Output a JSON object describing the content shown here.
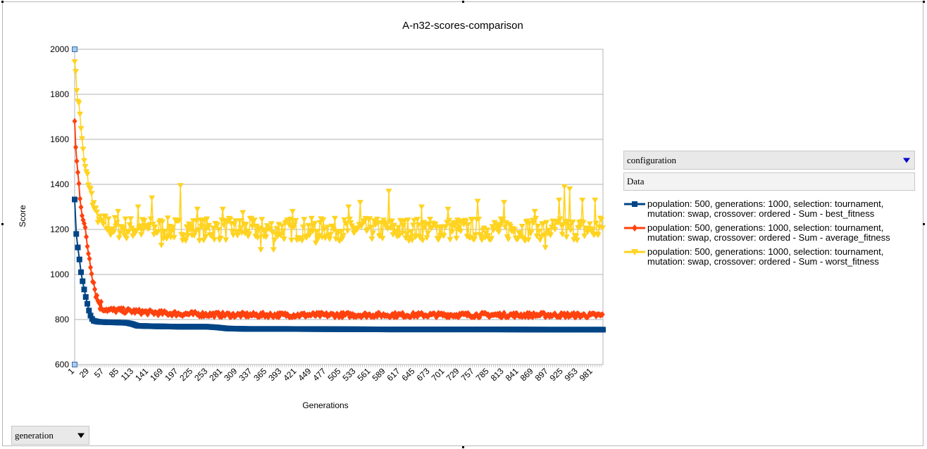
{
  "chart_data": {
    "type": "line",
    "title": "A-n32-scores-comparison",
    "xlabel": "Generations",
    "ylabel": "Score",
    "xlim": [
      1,
      1000
    ],
    "ylim": [
      600,
      2000
    ],
    "yticks": [
      600,
      800,
      1000,
      1200,
      1400,
      1600,
      1800,
      2000
    ],
    "xtick_labels": [
      1,
      29,
      57,
      85,
      113,
      141,
      169,
      197,
      225,
      253,
      281,
      309,
      337,
      365,
      393,
      421,
      449,
      477,
      505,
      533,
      561,
      589,
      617,
      645,
      673,
      701,
      729,
      757,
      785,
      813,
      841,
      869,
      897,
      925,
      953,
      981
    ],
    "grid": "horizontal",
    "legend_position": "right",
    "series": [
      {
        "name": "population: 500, generations: 1000, selection: tournament, mutation: swap, crossover: ordered - Sum - best_fitness",
        "color": "#004586",
        "marker": "square",
        "points": [
          [
            1,
            1333
          ],
          [
            3,
            1200
          ],
          [
            5,
            1160
          ],
          [
            8,
            1100
          ],
          [
            11,
            1050
          ],
          [
            14,
            990
          ],
          [
            17,
            960
          ],
          [
            20,
            920
          ],
          [
            24,
            880
          ],
          [
            28,
            840
          ],
          [
            32,
            810
          ],
          [
            36,
            795
          ],
          [
            45,
            790
          ],
          [
            60,
            788
          ],
          [
            80,
            787
          ],
          [
            100,
            785
          ],
          [
            110,
            780
          ],
          [
            120,
            772
          ],
          [
            150,
            770
          ],
          [
            200,
            768
          ],
          [
            250,
            768
          ],
          [
            270,
            765
          ],
          [
            290,
            760
          ],
          [
            330,
            758
          ],
          [
            400,
            758
          ],
          [
            500,
            757
          ],
          [
            600,
            756
          ],
          [
            700,
            756
          ],
          [
            800,
            756
          ],
          [
            900,
            755
          ],
          [
            1000,
            755
          ]
        ]
      },
      {
        "name": "population: 500, generations: 1000, selection: tournament, mutation: swap, crossover: ordered - Sum - average_fitness",
        "color": "#ff420e",
        "marker": "diamond",
        "points": [
          [
            1,
            1690
          ],
          [
            3,
            1560
          ],
          [
            6,
            1470
          ],
          [
            9,
            1400
          ],
          [
            12,
            1330
          ],
          [
            15,
            1280
          ],
          [
            19,
            1220
          ],
          [
            23,
            1160
          ],
          [
            27,
            1100
          ],
          [
            31,
            1050
          ],
          [
            35,
            990
          ],
          [
            39,
            940
          ],
          [
            43,
            900
          ],
          [
            48,
            870
          ],
          [
            55,
            850
          ],
          [
            65,
            842
          ],
          [
            90,
            840
          ],
          [
            120,
            835
          ],
          [
            150,
            830
          ],
          [
            200,
            825
          ],
          [
            300,
            820
          ],
          [
            400,
            820
          ],
          [
            500,
            820
          ],
          [
            600,
            820
          ],
          [
            700,
            820
          ],
          [
            800,
            820
          ],
          [
            900,
            820
          ],
          [
            1000,
            818
          ]
        ],
        "noise_band": [
          810,
          830
        ]
      },
      {
        "name": "population: 500, generations: 1000, selection: tournament, mutation: swap, crossover: ordered - Sum - worst_fitness",
        "color": "#ffd320",
        "marker": "triangle-down",
        "points": [
          [
            1,
            1970
          ],
          [
            3,
            1880
          ],
          [
            6,
            1800
          ],
          [
            9,
            1750
          ],
          [
            12,
            1690
          ],
          [
            15,
            1590
          ],
          [
            18,
            1520
          ],
          [
            21,
            1470
          ],
          [
            25,
            1430
          ],
          [
            30,
            1380
          ],
          [
            35,
            1330
          ],
          [
            40,
            1280
          ],
          [
            45,
            1250
          ],
          [
            55,
            1220
          ],
          [
            70,
            1210
          ],
          [
            100,
            1205
          ],
          [
            200,
            1200
          ],
          [
            400,
            1200
          ],
          [
            600,
            1200
          ],
          [
            800,
            1200
          ],
          [
            1000,
            1200
          ]
        ],
        "noise_band": [
          1160,
          1260
        ],
        "spikes": [
          [
            83,
            1280
          ],
          [
            121,
            1300
          ],
          [
            147,
            1340
          ],
          [
            164,
            1130
          ],
          [
            200,
            1395
          ],
          [
            232,
            1290
          ],
          [
            281,
            1290
          ],
          [
            318,
            1275
          ],
          [
            352,
            1110
          ],
          [
            376,
            1110
          ],
          [
            412,
            1280
          ],
          [
            457,
            1140
          ],
          [
            518,
            1300
          ],
          [
            540,
            1320
          ],
          [
            561,
            1210
          ],
          [
            594,
            1370
          ],
          [
            656,
            1300
          ],
          [
            707,
            1290
          ],
          [
            762,
            1325
          ],
          [
            813,
            1320
          ],
          [
            870,
            1280
          ],
          [
            891,
            1120
          ],
          [
            902,
            1210
          ],
          [
            916,
            1330
          ],
          [
            927,
            1390
          ],
          [
            937,
            1380
          ],
          [
            960,
            1330
          ],
          [
            985,
            1330
          ],
          [
            995,
            1250
          ]
        ]
      }
    ]
  },
  "ui": {
    "config_dropdown_label": "configuration",
    "data_field_label": "Data",
    "generation_dropdown_label": "generation"
  }
}
